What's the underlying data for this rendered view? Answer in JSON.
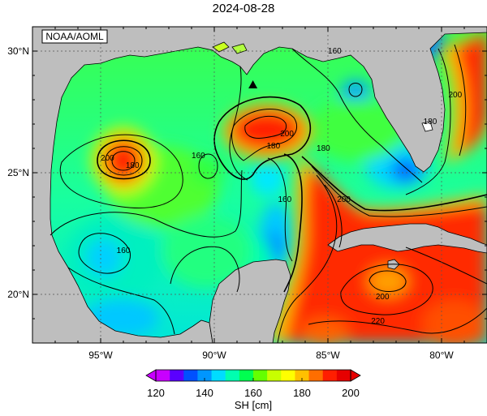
{
  "title": "2024-08-28",
  "credit": "NOAA/AOML",
  "map": {
    "lon_range": [
      -98,
      -78
    ],
    "lat_range": [
      18,
      31
    ],
    "lat_ticks": [
      {
        "value": 30,
        "label": "30°N"
      },
      {
        "value": 25,
        "label": "25°N"
      },
      {
        "value": 20,
        "label": "20°N"
      }
    ],
    "lon_ticks": [
      {
        "value": -95,
        "label": "95°W"
      },
      {
        "value": -90,
        "label": "90°W"
      },
      {
        "value": -85,
        "label": "85°W"
      },
      {
        "value": -80,
        "label": "80°W"
      }
    ],
    "gridlines": true,
    "marker": {
      "symbol": "triangle",
      "lon": -88.3,
      "lat": 28.6
    },
    "contour_labels": [
      {
        "text": "160",
        "lon": -84.7,
        "lat": 30.0
      },
      {
        "text": "200",
        "lon": -79.4,
        "lat": 28.2
      },
      {
        "text": "180",
        "lon": -80.5,
        "lat": 27.1
      },
      {
        "text": "200",
        "lon": -86.8,
        "lat": 26.6
      },
      {
        "text": "180",
        "lon": -85.2,
        "lat": 26.0
      },
      {
        "text": "180",
        "lon": -87.4,
        "lat": 26.1
      },
      {
        "text": "160",
        "lon": -90.7,
        "lat": 25.7
      },
      {
        "text": "200",
        "lon": -94.7,
        "lat": 25.6
      },
      {
        "text": "180",
        "lon": -93.6,
        "lat": 25.3
      },
      {
        "text": "160",
        "lon": -86.9,
        "lat": 23.9
      },
      {
        "text": "200",
        "lon": -84.3,
        "lat": 23.9
      },
      {
        "text": "160",
        "lon": -94.0,
        "lat": 21.8
      },
      {
        "text": "200",
        "lon": -82.6,
        "lat": 19.9
      },
      {
        "text": "220",
        "lon": -82.8,
        "lat": 18.9
      }
    ]
  },
  "colorbar": {
    "ticks": [
      "120",
      "140",
      "160",
      "180",
      "200"
    ],
    "min": 120,
    "max": 200,
    "label": "SH [cm]",
    "colors": [
      "#c800ff",
      "#5a00ff",
      "#0050ff",
      "#0096ff",
      "#00dcff",
      "#00ffb0",
      "#00ff50",
      "#64ff00",
      "#c8ff00",
      "#ffff00",
      "#ffc000",
      "#ff6e00",
      "#ff1e00",
      "#e60000"
    ]
  },
  "colors": {
    "land": "#bebebe",
    "grid": "#555555",
    "contour": "#000000"
  }
}
